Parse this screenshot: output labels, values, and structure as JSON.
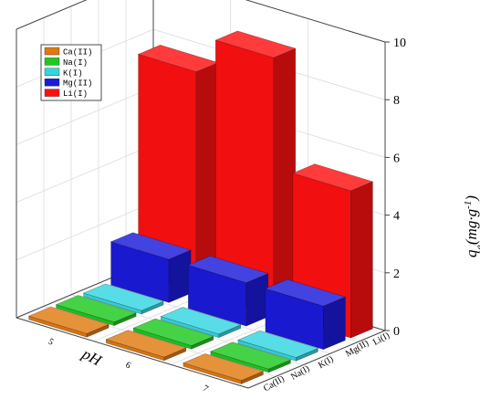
{
  "chart_data": {
    "type": "bar",
    "title": "",
    "zlabel": "q",
    "zlabel_sub": "e",
    "zlabel_unit": "(mg·g",
    "zlabel_sup": "-1",
    "zlabel_close": ")",
    "xlabel": "pH",
    "x_categories": [
      "7",
      "6",
      "5"
    ],
    "y_categories": [
      "Ca(II)",
      "Na(I)",
      "K(I)",
      "Mg(II)",
      "Li(I)"
    ],
    "zlim": [
      0,
      10
    ],
    "zticks": [
      "0",
      "2",
      "4",
      "6",
      "8",
      "10"
    ],
    "grid": true,
    "legend_position": "top-left",
    "series": [
      {
        "name": "Ca(II)",
        "color": "#e07a10",
        "values": [
          0.12,
          0.12,
          0.12
        ]
      },
      {
        "name": "Na(I)",
        "color": "#1ec81e",
        "values": [
          0.12,
          0.12,
          0.12
        ]
      },
      {
        "name": "K(I)",
        "color": "#33d6e0",
        "values": [
          0.12,
          0.12,
          0.12
        ]
      },
      {
        "name": "Mg(II)",
        "color": "#1a1adb",
        "values": [
          1.5,
          1.5,
          1.5
        ]
      },
      {
        "name": "Li(I)",
        "color": "#ff1010",
        "values": [
          5.1,
          8.9,
          7.6
        ]
      }
    ]
  }
}
